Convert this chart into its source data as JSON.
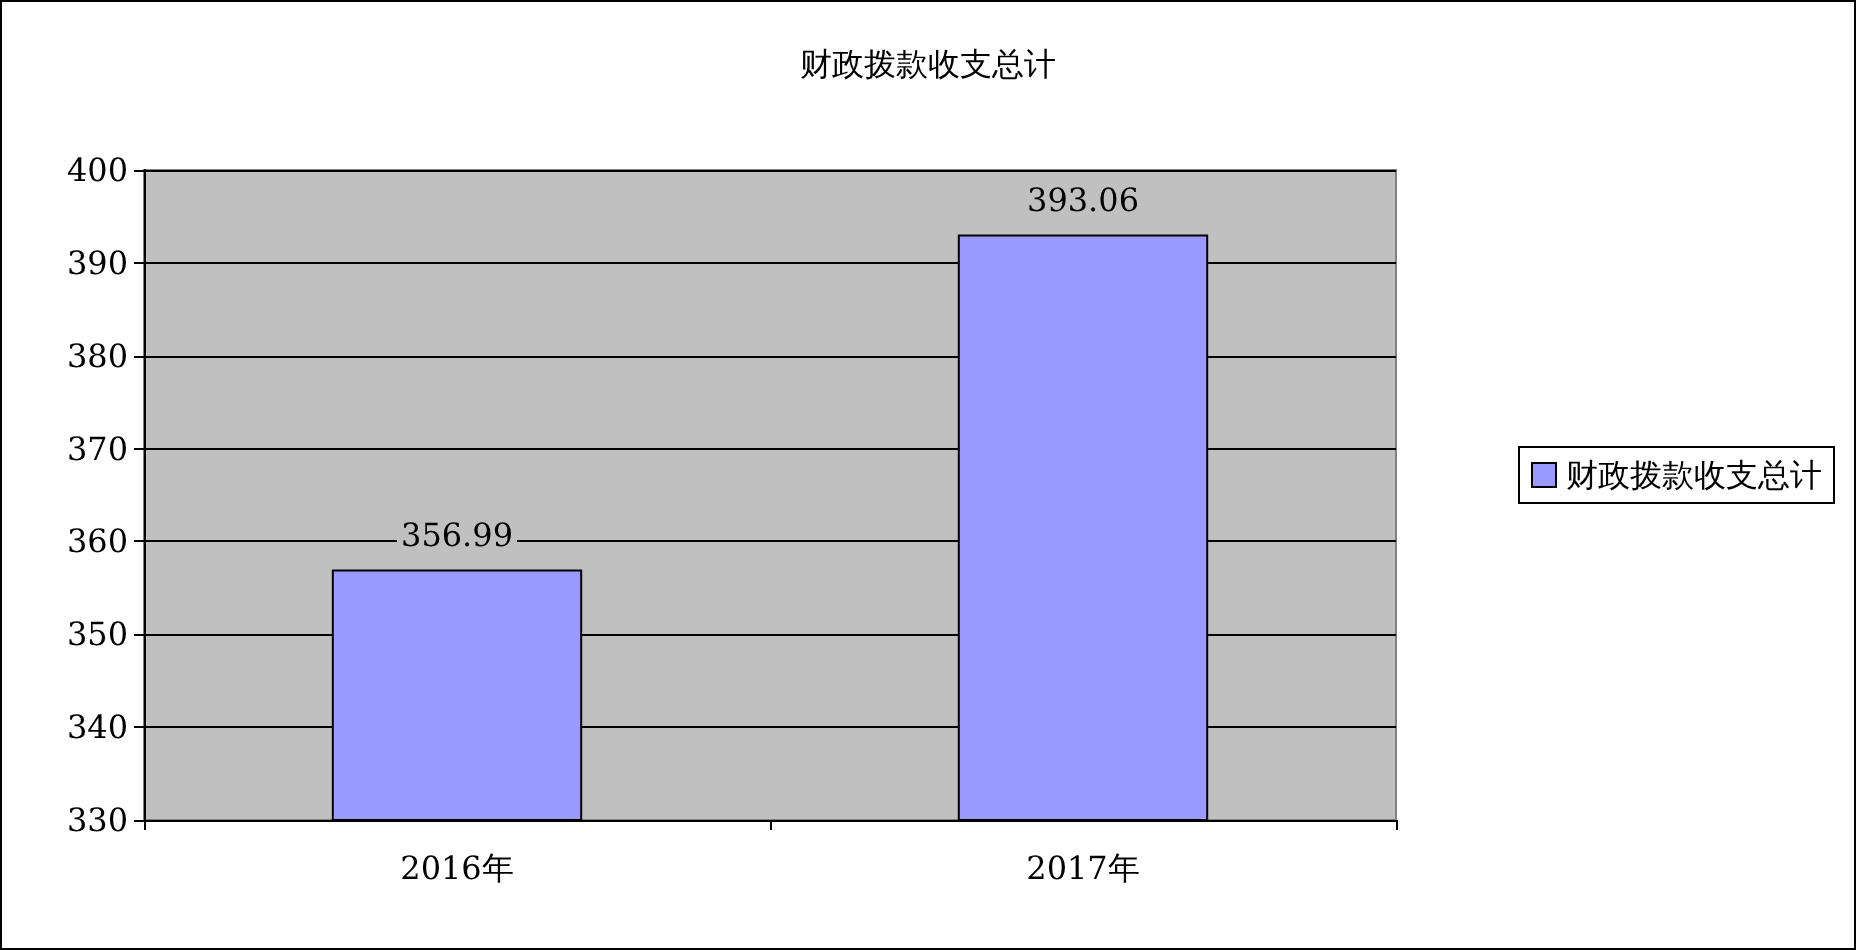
{
  "chart_data": {
    "type": "bar",
    "title": "财政拨款收支总计",
    "categories": [
      "2016年",
      "2017年"
    ],
    "series": [
      {
        "name": "财政拨款收支总计",
        "color": "#9999ff",
        "values": [
          356.99,
          393.06
        ]
      }
    ],
    "ylim": [
      330,
      400
    ],
    "yticks": [
      330,
      340,
      350,
      360,
      370,
      380,
      390,
      400
    ],
    "grid": "y",
    "legend": "right",
    "data_labels": true
  }
}
